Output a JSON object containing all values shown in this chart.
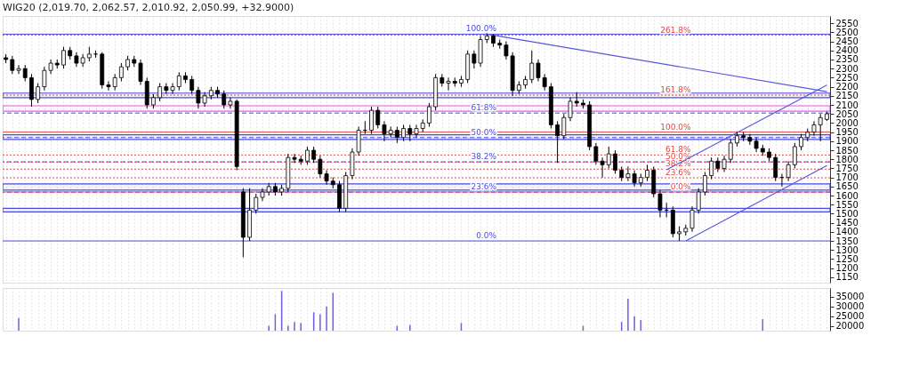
{
  "chart_data": [
    {
      "type": "candlestick",
      "title": "WIG20 (2,019.70, 2,062.57, 2,010.92, 2,050.99, +32.9000)",
      "categories": [
        null,
        null,
        null,
        null,
        null,
        null,
        null,
        null,
        null,
        null,
        null,
        null,
        null,
        null,
        null,
        null,
        null,
        null,
        null,
        null,
        null,
        null,
        null,
        null,
        null,
        null,
        null,
        null,
        null,
        null,
        null,
        null,
        null,
        null,
        null,
        null,
        null,
        null,
        null,
        null,
        null,
        null,
        null,
        null,
        null,
        null,
        null,
        null,
        null,
        null,
        null,
        null,
        null,
        null,
        null,
        null,
        null,
        null,
        null,
        null,
        null,
        null,
        null,
        null,
        null,
        null,
        null,
        null,
        null,
        null,
        null,
        null,
        null,
        null,
        null,
        null,
        null,
        null,
        null,
        null,
        null,
        null,
        null,
        null,
        null,
        null,
        null,
        null,
        null,
        null,
        null,
        null,
        null,
        null,
        null,
        null,
        null,
        null,
        null,
        null,
        null,
        null,
        null,
        null,
        null,
        null,
        null,
        null,
        null,
        null,
        null,
        null,
        null,
        null,
        null,
        null,
        null,
        null,
        null,
        null,
        null,
        null,
        null,
        null,
        null,
        null,
        null,
        null,
        null
      ],
      "ohlc": [
        [
          2360,
          2380,
          2330,
          2350
        ],
        [
          2350,
          2370,
          2270,
          2290
        ],
        [
          2290,
          2320,
          2270,
          2300
        ],
        [
          2300,
          2320,
          2230,
          2250
        ],
        [
          2250,
          2270,
          2090,
          2130
        ],
        [
          2130,
          2220,
          2110,
          2200
        ],
        [
          2200,
          2310,
          2180,
          2290
        ],
        [
          2290,
          2350,
          2270,
          2330
        ],
        [
          2330,
          2350,
          2300,
          2320
        ],
        [
          2320,
          2420,
          2300,
          2400
        ],
        [
          2400,
          2420,
          2350,
          2370
        ],
        [
          2370,
          2390,
          2310,
          2330
        ],
        [
          2330,
          2380,
          2310,
          2360
        ],
        [
          2360,
          2420,
          2340,
          2380
        ],
        [
          2380,
          2400,
          2360,
          2380
        ],
        [
          2380,
          2390,
          2190,
          2210
        ],
        [
          2210,
          2230,
          2180,
          2200
        ],
        [
          2200,
          2270,
          2180,
          2250
        ],
        [
          2250,
          2330,
          2230,
          2310
        ],
        [
          2310,
          2370,
          2290,
          2350
        ],
        [
          2350,
          2370,
          2310,
          2330
        ],
        [
          2330,
          2350,
          2210,
          2230
        ],
        [
          2230,
          2250,
          2080,
          2100
        ],
        [
          2100,
          2160,
          2080,
          2140
        ],
        [
          2140,
          2220,
          2120,
          2200
        ],
        [
          2200,
          2220,
          2160,
          2180
        ],
        [
          2180,
          2220,
          2160,
          2200
        ],
        [
          2200,
          2280,
          2180,
          2260
        ],
        [
          2260,
          2280,
          2220,
          2240
        ],
        [
          2240,
          2260,
          2160,
          2180
        ],
        [
          2180,
          2200,
          2080,
          2110
        ],
        [
          2110,
          2170,
          2090,
          2150
        ],
        [
          2150,
          2200,
          2130,
          2180
        ],
        [
          2180,
          2200,
          2140,
          2160
        ],
        [
          2160,
          2180,
          2080,
          2100
        ],
        [
          2100,
          2140,
          2080,
          2120
        ],
        [
          2120,
          2130,
          1740,
          1760
        ],
        [
          1620,
          1640,
          1260,
          1370
        ],
        [
          1370,
          1640,
          1350,
          1520
        ],
        [
          1520,
          1610,
          1500,
          1590
        ],
        [
          1590,
          1640,
          1570,
          1620
        ],
        [
          1620,
          1670,
          1600,
          1650
        ],
        [
          1650,
          1670,
          1600,
          1620
        ],
        [
          1620,
          1660,
          1600,
          1640
        ],
        [
          1640,
          1830,
          1620,
          1810
        ],
        [
          1810,
          1830,
          1780,
          1800
        ],
        [
          1800,
          1820,
          1770,
          1790
        ],
        [
          1790,
          1870,
          1770,
          1850
        ],
        [
          1850,
          1870,
          1780,
          1800
        ],
        [
          1800,
          1820,
          1700,
          1720
        ],
        [
          1720,
          1740,
          1660,
          1680
        ],
        [
          1680,
          1700,
          1640,
          1660
        ],
        [
          1660,
          1680,
          1510,
          1530
        ],
        [
          1530,
          1730,
          1510,
          1710
        ],
        [
          1710,
          1860,
          1690,
          1840
        ],
        [
          1840,
          1980,
          1820,
          1960
        ],
        [
          1960,
          2010,
          1940,
          1960
        ],
        [
          1960,
          2090,
          1940,
          2070
        ],
        [
          2070,
          2090,
          1970,
          1990
        ],
        [
          1990,
          2010,
          1900,
          1940
        ],
        [
          1940,
          1980,
          1920,
          1960
        ],
        [
          1960,
          1980,
          1890,
          1920
        ],
        [
          1920,
          1990,
          1900,
          1970
        ],
        [
          1970,
          1990,
          1900,
          1940
        ],
        [
          1940,
          1990,
          1920,
          1970
        ],
        [
          1970,
          2020,
          1950,
          2000
        ],
        [
          2000,
          2110,
          1980,
          2090
        ],
        [
          2090,
          2270,
          2070,
          2250
        ],
        [
          2250,
          2270,
          2200,
          2220
        ],
        [
          2220,
          2250,
          2180,
          2230
        ],
        [
          2230,
          2250,
          2200,
          2220
        ],
        [
          2220,
          2260,
          2200,
          2240
        ],
        [
          2240,
          2400,
          2220,
          2380
        ],
        [
          2380,
          2400,
          2300,
          2330
        ],
        [
          2330,
          2480,
          2310,
          2460
        ],
        [
          2460,
          2495,
          2440,
          2480
        ],
        [
          2480,
          2490,
          2420,
          2440
        ],
        [
          2440,
          2460,
          2410,
          2430
        ],
        [
          2430,
          2450,
          2350,
          2370
        ],
        [
          2370,
          2390,
          2150,
          2180
        ],
        [
          2180,
          2230,
          2160,
          2210
        ],
        [
          2210,
          2260,
          2190,
          2240
        ],
        [
          2240,
          2400,
          2220,
          2330
        ],
        [
          2330,
          2350,
          2230,
          2250
        ],
        [
          2250,
          2270,
          2180,
          2200
        ],
        [
          2200,
          2220,
          1970,
          1990
        ],
        [
          1990,
          2010,
          1780,
          1930
        ],
        [
          1930,
          2050,
          1910,
          2030
        ],
        [
          2030,
          2140,
          2010,
          2120
        ],
        [
          2120,
          2170,
          2090,
          2110
        ],
        [
          2110,
          2130,
          2080,
          2100
        ],
        [
          2100,
          2120,
          1850,
          1870
        ],
        [
          1870,
          1890,
          1770,
          1790
        ],
        [
          1790,
          1810,
          1700,
          1770
        ],
        [
          1770,
          1870,
          1750,
          1830
        ],
        [
          1830,
          1850,
          1720,
          1740
        ],
        [
          1740,
          1760,
          1680,
          1700
        ],
        [
          1700,
          1760,
          1680,
          1720
        ],
        [
          1720,
          1740,
          1650,
          1670
        ],
        [
          1670,
          1720,
          1650,
          1700
        ],
        [
          1700,
          1770,
          1680,
          1740
        ],
        [
          1740,
          1760,
          1590,
          1610
        ],
        [
          1610,
          1630,
          1480,
          1520
        ],
        [
          1520,
          1560,
          1480,
          1520
        ],
        [
          1520,
          1540,
          1370,
          1390
        ],
        [
          1390,
          1430,
          1350,
          1400
        ],
        [
          1400,
          1440,
          1380,
          1420
        ],
        [
          1420,
          1540,
          1400,
          1520
        ],
        [
          1520,
          1640,
          1500,
          1620
        ],
        [
          1620,
          1730,
          1600,
          1710
        ],
        [
          1710,
          1810,
          1690,
          1790
        ],
        [
          1790,
          1810,
          1730,
          1750
        ],
        [
          1750,
          1820,
          1730,
          1800
        ],
        [
          1800,
          1910,
          1780,
          1890
        ],
        [
          1890,
          1950,
          1870,
          1930
        ],
        [
          1930,
          1950,
          1900,
          1920
        ],
        [
          1920,
          1940,
          1880,
          1900
        ],
        [
          1900,
          1920,
          1840,
          1860
        ],
        [
          1860,
          1880,
          1820,
          1840
        ],
        [
          1840,
          1860,
          1790,
          1810
        ],
        [
          1810,
          1830,
          1680,
          1700
        ],
        [
          1700,
          1720,
          1650,
          1700
        ],
        [
          1700,
          1790,
          1680,
          1770
        ],
        [
          1770,
          1890,
          1750,
          1870
        ],
        [
          1870,
          1940,
          1850,
          1920
        ],
        [
          1920,
          1970,
          1900,
          1950
        ],
        [
          1950,
          2010,
          1930,
          1990
        ],
        [
          1990,
          2050,
          1900,
          2030
        ],
        [
          2019.7,
          2062.57,
          2010.92,
          2050.99
        ]
      ],
      "series": [
        {
          "type": "line",
          "color": "#5555e0",
          "values": [
            null,
            null,
            null,
            null,
            null,
            null,
            null,
            null,
            null,
            null,
            null,
            null,
            null,
            null,
            null,
            null,
            null,
            null,
            null,
            null,
            null,
            null,
            null,
            null,
            null,
            null,
            null,
            null,
            null,
            null,
            null,
            null,
            null,
            null,
            null,
            null,
            null,
            null,
            null,
            null,
            null,
            null,
            null,
            null,
            null,
            null,
            null,
            null,
            null,
            null,
            null,
            null,
            null,
            null,
            null,
            null,
            null,
            null,
            null,
            null,
            null,
            null,
            null,
            null,
            null,
            null,
            null,
            null,
            null,
            null,
            null,
            null,
            null,
            null,
            null,
            2490,
            null,
            null,
            null,
            null,
            null,
            null,
            null,
            null,
            null,
            null,
            null,
            null,
            null,
            null,
            null,
            null,
            null,
            null,
            null,
            null,
            null,
            null,
            null,
            null,
            null,
            null,
            null,
            null,
            null,
            null,
            null,
            null,
            null,
            null,
            null,
            null,
            null,
            null,
            null,
            null,
            null,
            null,
            null,
            null,
            null,
            null,
            null,
            null,
            null,
            null,
            null,
            null,
            2173
          ]
        },
        {
          "type": "line",
          "color": "#5555e0",
          "values": [
            null,
            null,
            null,
            null,
            null,
            null,
            null,
            null,
            null,
            null,
            null,
            null,
            null,
            null,
            null,
            null,
            null,
            null,
            null,
            null,
            null,
            null,
            null,
            null,
            null,
            null,
            null,
            null,
            null,
            null,
            null,
            null,
            null,
            null,
            null,
            null,
            null,
            null,
            null,
            null,
            null,
            null,
            null,
            null,
            null,
            null,
            null,
            null,
            null,
            null,
            null,
            null,
            null,
            null,
            null,
            null,
            null,
            null,
            null,
            null,
            null,
            null,
            null,
            null,
            null,
            null,
            null,
            null,
            null,
            null,
            null,
            null,
            null,
            null,
            null,
            null,
            null,
            null,
            null,
            null,
            null,
            null,
            null,
            null,
            null,
            null,
            null,
            null,
            null,
            null,
            null,
            null,
            null,
            null,
            null,
            null,
            null,
            null,
            null,
            null,
            null,
            null,
            null,
            1742,
            null,
            null,
            null,
            null,
            null,
            null,
            null,
            null,
            null,
            null,
            null,
            null,
            null,
            null,
            null,
            null,
            null,
            null,
            null,
            null,
            null,
            null,
            null,
            null,
            2209
          ]
        },
        {
          "type": "line",
          "color": "#5555e0",
          "values": [
            null,
            null,
            null,
            null,
            null,
            null,
            null,
            null,
            null,
            null,
            null,
            null,
            null,
            null,
            null,
            null,
            null,
            null,
            null,
            null,
            null,
            null,
            null,
            null,
            null,
            null,
            null,
            null,
            null,
            null,
            null,
            null,
            null,
            null,
            null,
            null,
            null,
            null,
            null,
            null,
            null,
            null,
            null,
            null,
            null,
            null,
            null,
            null,
            null,
            null,
            null,
            null,
            null,
            null,
            null,
            null,
            null,
            null,
            null,
            null,
            null,
            null,
            null,
            null,
            null,
            null,
            null,
            null,
            null,
            null,
            null,
            null,
            null,
            null,
            null,
            null,
            null,
            null,
            null,
            null,
            null,
            null,
            null,
            null,
            null,
            null,
            null,
            null,
            null,
            null,
            null,
            null,
            null,
            null,
            null,
            null,
            null,
            null,
            null,
            null,
            null,
            null,
            null,
            null,
            null,
            null,
            1350,
            null,
            null,
            null,
            null,
            null,
            null,
            null,
            null,
            null,
            null,
            null,
            null,
            null,
            null,
            null,
            null,
            null,
            null,
            null,
            null,
            null,
            1766
          ]
        }
      ],
      "ylim": [
        1120,
        2590
      ],
      "yticks": [
        1150,
        1200,
        1250,
        1300,
        1350,
        1400,
        1450,
        1500,
        1550,
        1600,
        1650,
        1700,
        1750,
        1800,
        1850,
        1900,
        1950,
        2000,
        2050,
        2100,
        2150,
        2200,
        2250,
        2300,
        2350,
        2400,
        2450,
        2500,
        2550
      ],
      "ref_lines": [
        {
          "axis": "y",
          "value": 2490,
          "color": "#4a4ae0",
          "line_style": "solid"
        },
        {
          "axis": "y",
          "value": 2055,
          "color": "#4a4ae0",
          "line_style": "dashed"
        },
        {
          "axis": "y",
          "value": 1920,
          "color": "#4a4ae0",
          "line_style": "dashed"
        },
        {
          "axis": "y",
          "value": 1786,
          "color": "#4a4ae0",
          "line_style": "dashed"
        },
        {
          "axis": "y",
          "value": 1619,
          "color": "#4a4ae0",
          "line_style": "dashed"
        },
        {
          "axis": "y",
          "value": 1350,
          "color": "#4a4ae0",
          "line_style": "solid"
        },
        {
          "axis": "y",
          "value": 2484,
          "color": "#e04848",
          "line_style": "dotted"
        },
        {
          "axis": "y",
          "value": 2154,
          "color": "#e04848",
          "line_style": "dotted"
        },
        {
          "axis": "y",
          "value": 1950,
          "color": "#e04848",
          "line_style": "solid"
        },
        {
          "axis": "y",
          "value": 1824,
          "color": "#e04848",
          "line_style": "dotted"
        },
        {
          "axis": "y",
          "value": 1785,
          "color": "#e04848",
          "line_style": "dotted"
        },
        {
          "axis": "y",
          "value": 1746,
          "color": "#e04848",
          "line_style": "dotted"
        },
        {
          "axis": "y",
          "value": 1698,
          "color": "#e04848",
          "line_style": "dotted"
        },
        {
          "axis": "y",
          "value": 1620,
          "color": "#e04848",
          "line_style": "solid"
        }
      ],
      "annotations": [
        {
          "text": "100.0%",
          "y": 2490
        },
        {
          "text": "61.8%",
          "y": 2055
        },
        {
          "text": "50.0%",
          "y": 1920
        },
        {
          "text": "38.2%",
          "y": 1786
        },
        {
          "text": "23.6%",
          "y": 1619
        },
        {
          "text": "0.0%",
          "y": 1350
        },
        {
          "text": "261.8%",
          "y": 2484
        },
        {
          "text": "161.8%",
          "y": 2154
        },
        {
          "text": "100.0%",
          "y": 1950
        },
        {
          "text": "61.8%",
          "y": 1824
        },
        {
          "text": "50.0%",
          "y": 1785
        },
        {
          "text": "38.2%",
          "y": 1746
        },
        {
          "text": "23.6%",
          "y": 1698
        },
        {
          "text": "0.0%",
          "y": 1620
        }
      ],
      "bands": [
        {
          "axis": "y",
          "from": 2065,
          "to": 2095,
          "color": "#e060e0"
        },
        {
          "axis": "y",
          "from": 2140,
          "to": 2165,
          "color": "#4a4ae0"
        },
        {
          "axis": "y",
          "from": 1910,
          "to": 1935,
          "color": "#4a4ae0"
        },
        {
          "axis": "y",
          "from": 1630,
          "to": 1665,
          "color": "#4a4ae0"
        },
        {
          "axis": "y",
          "from": 1510,
          "to": 1530,
          "color": "#4a4ae0"
        }
      ],
      "grid": "x",
      "tick_labels": "y"
    },
    {
      "type": "bar",
      "categories": [
        null,
        null,
        null,
        null,
        null,
        null,
        null,
        null,
        null,
        null,
        null,
        null,
        null,
        null,
        null,
        null,
        null,
        null,
        null,
        null,
        null,
        null,
        null,
        null,
        null,
        null,
        null,
        null,
        null,
        null,
        null,
        null,
        null,
        null,
        null,
        null,
        null,
        null,
        null,
        null,
        null,
        null,
        null,
        null,
        null,
        null,
        null,
        null,
        null,
        null,
        null,
        null,
        null,
        null,
        null,
        null,
        null,
        null,
        null,
        null,
        null,
        null,
        null,
        null,
        null,
        null,
        null,
        null,
        null,
        null,
        null,
        null,
        null,
        null,
        null,
        null,
        null,
        null,
        null,
        null,
        null,
        null,
        null,
        null,
        null,
        null,
        null,
        null,
        null,
        null,
        null,
        null,
        null,
        null,
        null,
        null,
        null,
        null,
        null,
        null,
        null,
        null,
        null,
        null,
        null,
        null,
        null,
        null,
        null,
        null,
        null,
        null,
        null,
        null,
        null,
        null,
        null,
        null,
        null,
        null,
        null,
        null,
        null,
        null,
        null,
        null,
        null,
        null,
        null
      ],
      "values": [
        null,
        null,
        24000,
        null,
        null,
        null,
        null,
        null,
        null,
        null,
        null,
        null,
        null,
        null,
        null,
        null,
        null,
        null,
        null,
        null,
        null,
        null,
        null,
        null,
        null,
        null,
        null,
        null,
        null,
        null,
        null,
        null,
        null,
        null,
        null,
        null,
        null,
        null,
        null,
        null,
        null,
        20000,
        26000,
        38000,
        20000,
        22000,
        21500,
        null,
        27000,
        26000,
        30000,
        37000,
        null,
        null,
        null,
        null,
        null,
        null,
        null,
        null,
        null,
        20000,
        null,
        20500,
        null,
        null,
        null,
        null,
        null,
        null,
        null,
        21500,
        null,
        null,
        null,
        null,
        null,
        null,
        null,
        null,
        null,
        null,
        null,
        null,
        null,
        null,
        null,
        null,
        null,
        null,
        20000,
        null,
        null,
        null,
        null,
        null,
        22000,
        34000,
        25000,
        23000,
        null,
        null,
        null,
        null,
        null,
        null,
        null,
        null,
        null,
        null,
        null,
        null,
        null,
        null,
        null,
        null,
        null,
        null,
        23500,
        null,
        null,
        null,
        null,
        null,
        null,
        null,
        null,
        null,
        null
      ],
      "color": "#7060e0",
      "ylim": [
        17500,
        39500
      ],
      "yticks": [
        20000,
        25000,
        30000,
        35000
      ],
      "grid": "x",
      "tick_labels": "y"
    }
  ]
}
